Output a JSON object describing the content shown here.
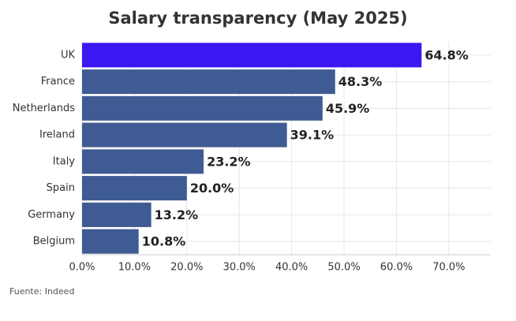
{
  "chart_data": {
    "type": "barh",
    "title": "Salary transparency (May 2025)",
    "categories": [
      "UK",
      "France",
      "Netherlands",
      "Ireland",
      "Italy",
      "Spain",
      "Germany",
      "Belgium"
    ],
    "values": [
      64.8,
      48.3,
      45.9,
      39.1,
      23.2,
      20.0,
      13.2,
      10.8
    ],
    "value_labels": [
      "64.8%",
      "48.3%",
      "45.9%",
      "39.1%",
      "23.2%",
      "20.0%",
      "13.2%",
      "10.8%"
    ],
    "colors": [
      "#3b17f2",
      "#3f5b93",
      "#3f5b93",
      "#3f5b93",
      "#3f5b93",
      "#3f5b93",
      "#3f5b93",
      "#3f5b93"
    ],
    "xlim": [
      0,
      78
    ],
    "xticks": [
      {
        "value": 0,
        "label": "0.0%"
      },
      {
        "value": 10,
        "label": "10.0%"
      },
      {
        "value": 20,
        "label": "20.0%"
      },
      {
        "value": 30,
        "label": "30.0%"
      },
      {
        "value": 40,
        "label": "40.0%"
      },
      {
        "value": 50,
        "label": "50.0%"
      },
      {
        "value": 60,
        "label": "60.0%"
      },
      {
        "value": 70,
        "label": "70.0%"
      }
    ],
    "grid": true,
    "source": "Fuente: Indeed"
  }
}
